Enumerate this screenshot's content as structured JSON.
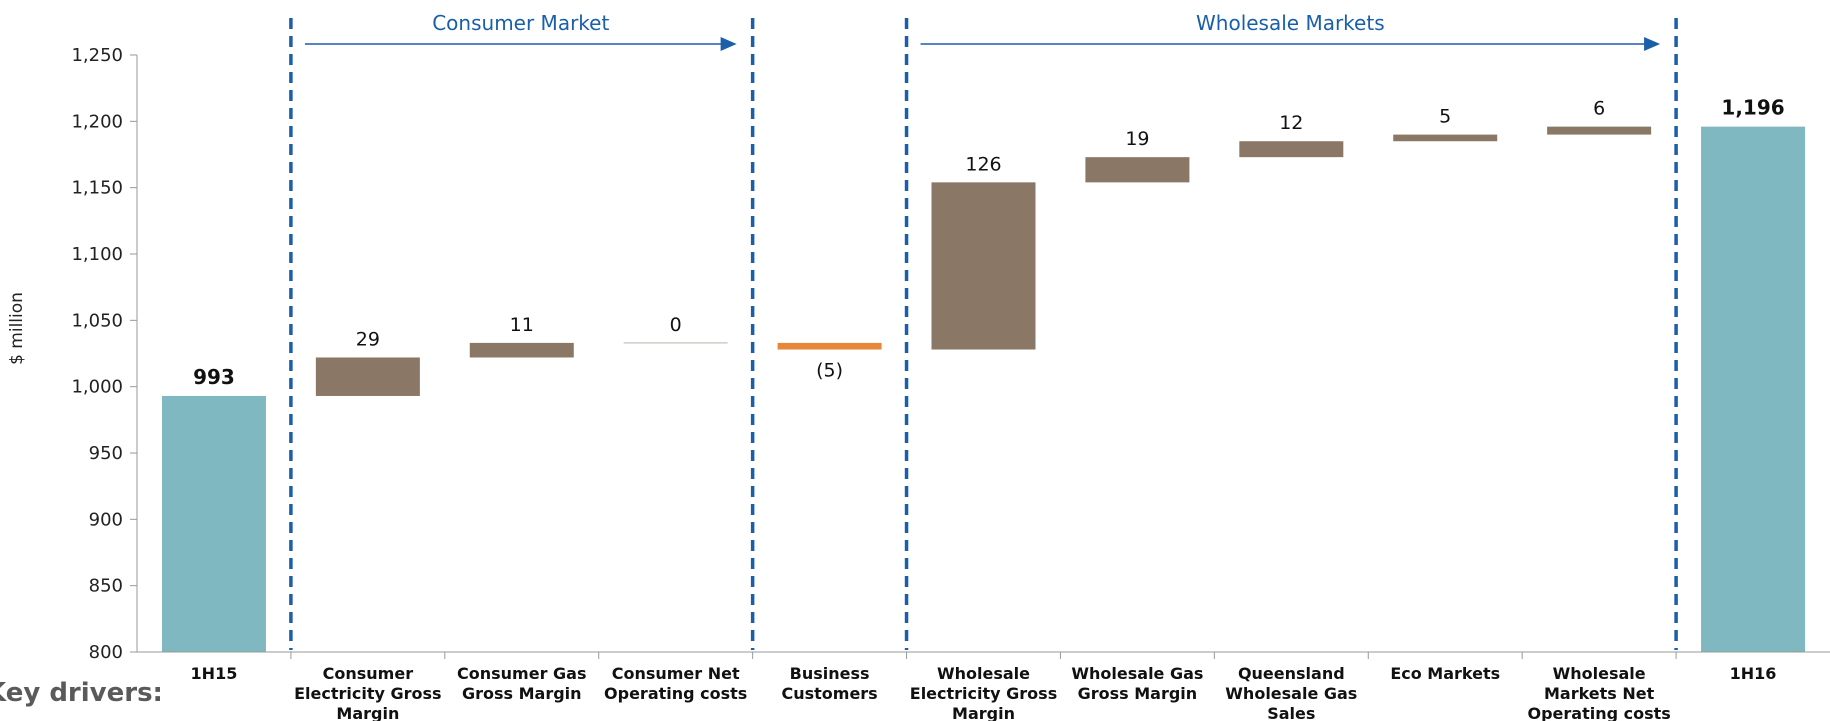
{
  "chart_data": {
    "type": "waterfall",
    "ylabel": "$ million",
    "ylim": [
      800,
      1250
    ],
    "yticks": [
      800,
      850,
      900,
      950,
      1000,
      1050,
      1100,
      1150,
      1200,
      1250
    ],
    "ytick_labels": [
      "800",
      "850",
      "900",
      "950",
      "1,000",
      "1,050",
      "1,100",
      "1,150",
      "1,200",
      "1,250"
    ],
    "bars": [
      {
        "category": [
          "1H15"
        ],
        "kind": "total",
        "base": 800,
        "top": 993,
        "label": "993",
        "color": "#7fb8c0"
      },
      {
        "category": [
          "Consumer",
          "Electricity Gross",
          "Margin"
        ],
        "kind": "increase",
        "base": 993,
        "top": 1022,
        "label": "29",
        "color": "#8a7766"
      },
      {
        "category": [
          "Consumer Gas",
          "Gross Margin"
        ],
        "kind": "increase",
        "base": 1022,
        "top": 1033,
        "label": "11",
        "color": "#8a7766"
      },
      {
        "category": [
          "Consumer Net",
          "Operating costs"
        ],
        "kind": "increase",
        "base": 1033,
        "top": 1033,
        "label": "0",
        "color": "#8a7766"
      },
      {
        "category": [
          "Business",
          "Customers"
        ],
        "kind": "decrease",
        "base": 1028,
        "top": 1033,
        "label": "(5)",
        "color": "#e8873a"
      },
      {
        "category": [
          "Wholesale",
          "Electricity Gross",
          "Margin"
        ],
        "kind": "increase",
        "base": 1028,
        "top": 1154,
        "label": "126",
        "color": "#8a7766"
      },
      {
        "category": [
          "Wholesale Gas",
          "Gross Margin"
        ],
        "kind": "increase",
        "base": 1154,
        "top": 1173,
        "label": "19",
        "color": "#8a7766"
      },
      {
        "category": [
          "Queensland",
          "Wholesale Gas",
          "Sales"
        ],
        "kind": "increase",
        "base": 1173,
        "top": 1185,
        "label": "12",
        "color": "#8a7766"
      },
      {
        "category": [
          "Eco Markets"
        ],
        "kind": "increase",
        "base": 1185,
        "top": 1190,
        "label": "5",
        "color": "#8a7766"
      },
      {
        "category": [
          "Wholesale",
          "Markets Net",
          "Operating costs"
        ],
        "kind": "increase",
        "base": 1190,
        "top": 1196,
        "label": "6",
        "color": "#8a7766"
      },
      {
        "category": [
          "1H16"
        ],
        "kind": "total",
        "base": 800,
        "top": 1196,
        "label": "1,196",
        "color": "#7fb8c0"
      }
    ],
    "groups": [
      {
        "label": "Consumer Market",
        "from_index": 1,
        "to_index": 3,
        "color": "#1a5fa8"
      },
      {
        "label": "Wholesale Markets",
        "from_index": 5,
        "to_index": 9,
        "color": "#1a5fa8"
      }
    ]
  },
  "footer": {
    "key_drivers": "Key drivers:"
  }
}
